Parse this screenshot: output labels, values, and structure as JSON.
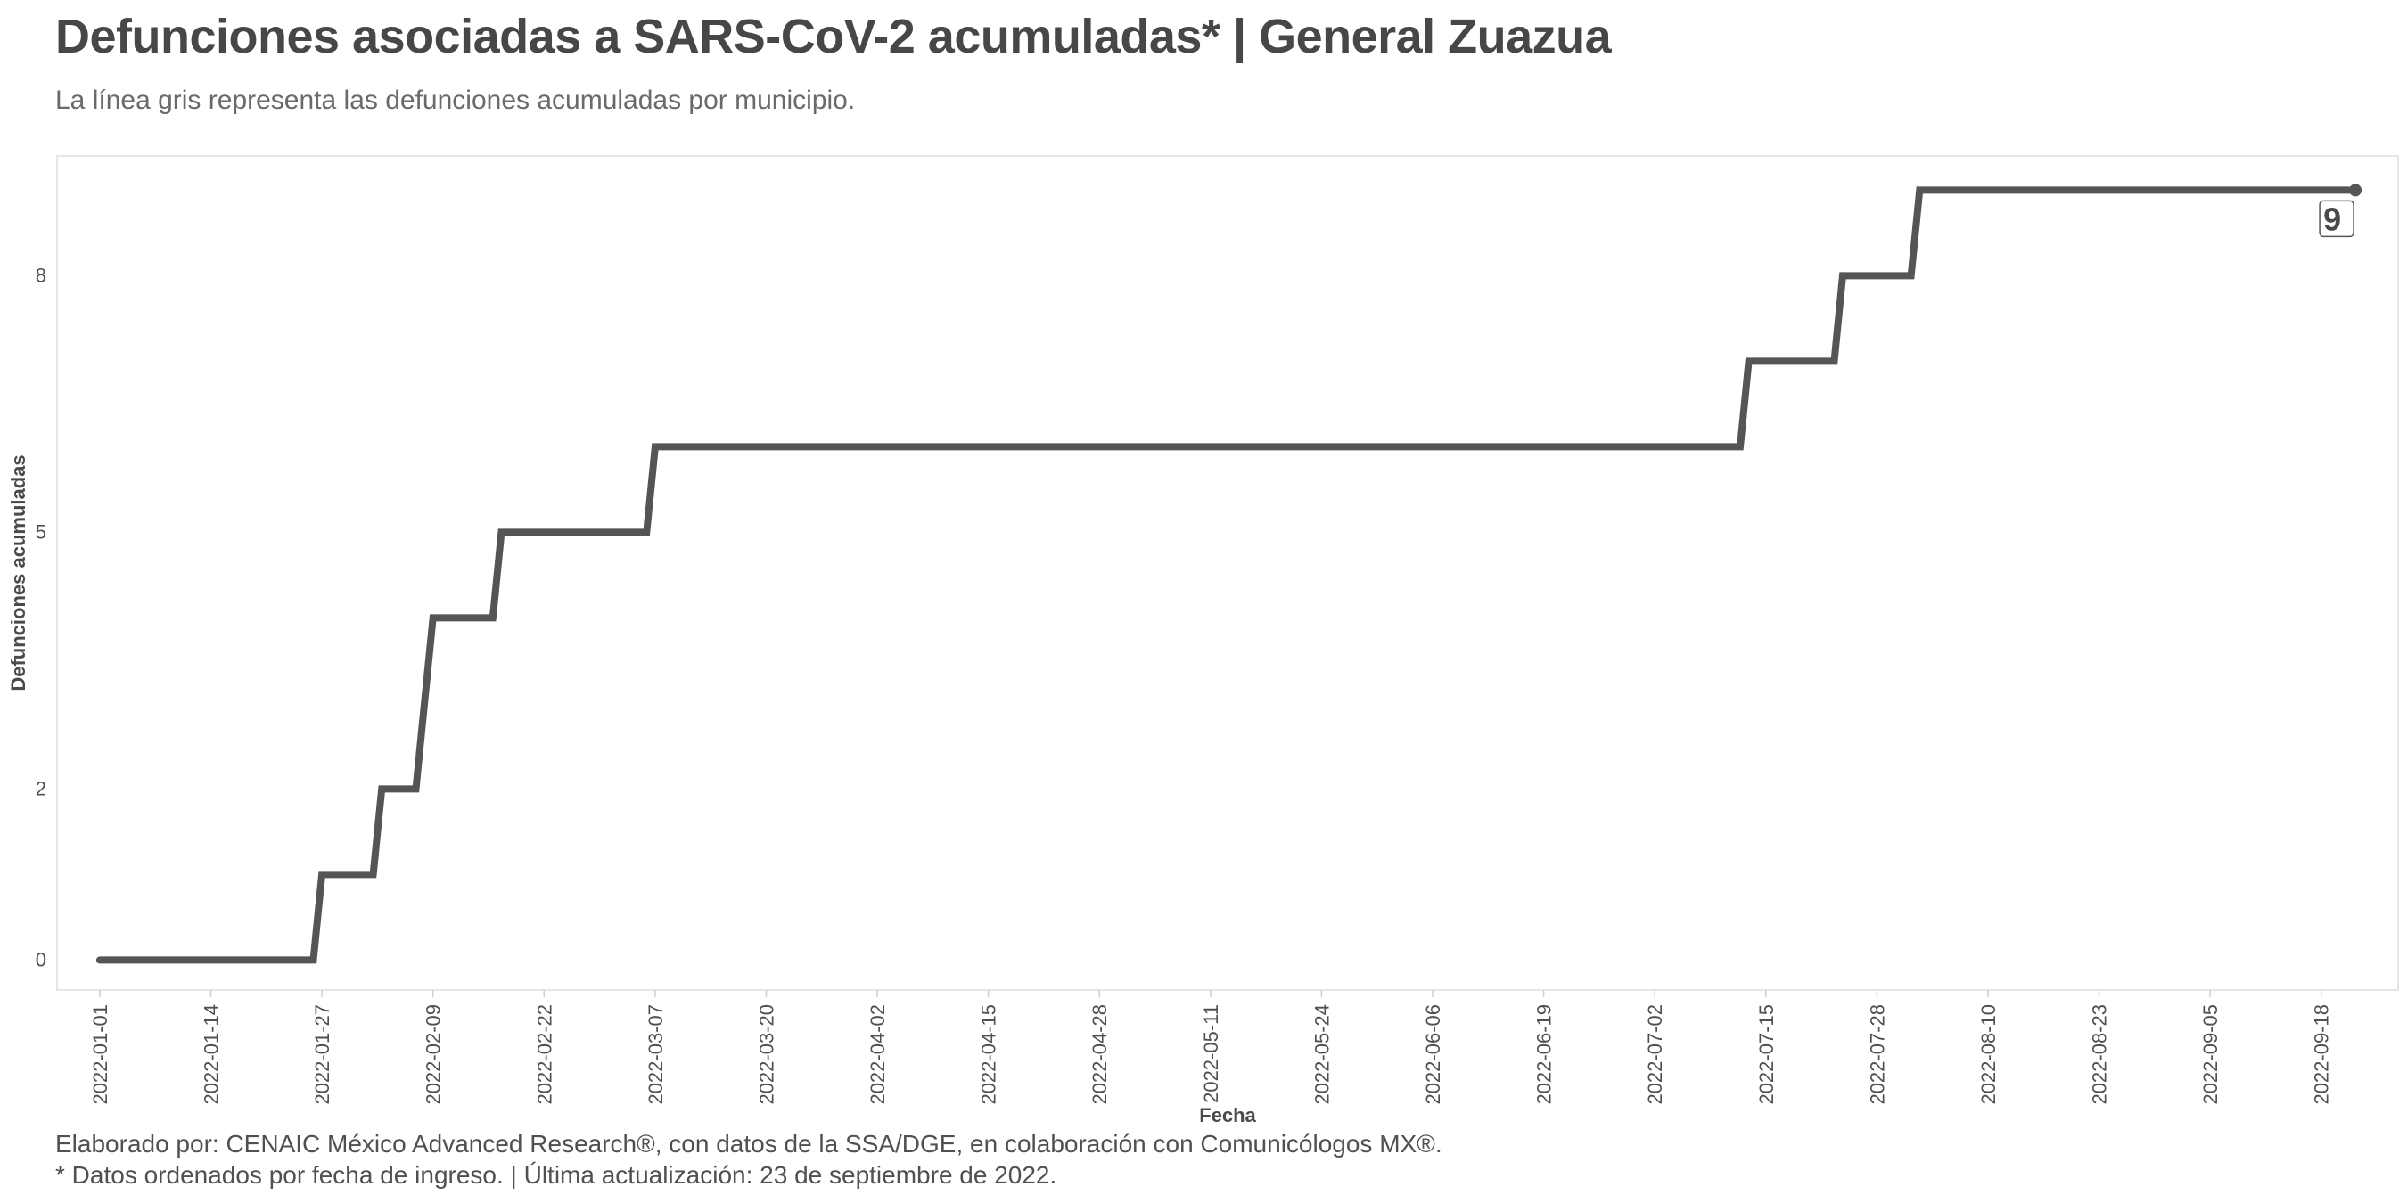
{
  "header": {
    "title": "Defunciones asociadas a SARS-CoV-2 acumuladas* | General Zuazua",
    "subtitle": "La línea gris representa las defunciones acumuladas por municipio."
  },
  "footer": {
    "caption_1": "Elaborado por: CENAIC México Advanced Research®, con datos de la SSA/DGE, en colaboración con Comunicólogos MX®.",
    "caption_2": "* Datos ordenados por fecha de ingreso. | Última actualización: 23 de septiembre de 2022."
  },
  "colors": {
    "line": "#555555",
    "panel_border": "#e6e6e6",
    "label_border": "#555555"
  },
  "chart_data": {
    "type": "line",
    "step": true,
    "xlabel": "Fecha",
    "ylabel": "Defunciones acumuladas",
    "xlim": [
      "2021-12-27",
      "2022-09-27"
    ],
    "ylim": [
      -0.35,
      9.4
    ],
    "x_ticks": [
      "2022-01-01",
      "2022-01-14",
      "2022-01-27",
      "2022-02-09",
      "2022-02-22",
      "2022-03-07",
      "2022-03-20",
      "2022-04-02",
      "2022-04-15",
      "2022-04-28",
      "2022-05-11",
      "2022-05-24",
      "2022-06-06",
      "2022-06-19",
      "2022-07-02",
      "2022-07-15",
      "2022-07-28",
      "2022-08-10",
      "2022-08-23",
      "2022-09-05",
      "2022-09-18"
    ],
    "y_ticks": [
      0,
      2,
      5,
      8
    ],
    "series": [
      {
        "points": [
          {
            "x": "2022-01-01",
            "y": 0
          },
          {
            "x": "2022-01-26",
            "y": 0
          },
          {
            "x": "2022-01-27",
            "y": 1
          },
          {
            "x": "2022-02-02",
            "y": 1
          },
          {
            "x": "2022-02-03",
            "y": 2
          },
          {
            "x": "2022-02-07",
            "y": 2
          },
          {
            "x": "2022-02-08",
            "y": 3
          },
          {
            "x": "2022-02-09",
            "y": 4
          },
          {
            "x": "2022-02-16",
            "y": 4
          },
          {
            "x": "2022-02-17",
            "y": 5
          },
          {
            "x": "2022-03-06",
            "y": 5
          },
          {
            "x": "2022-03-07",
            "y": 6
          },
          {
            "x": "2022-07-12",
            "y": 6
          },
          {
            "x": "2022-07-13",
            "y": 7
          },
          {
            "x": "2022-07-23",
            "y": 7
          },
          {
            "x": "2022-07-24",
            "y": 8
          },
          {
            "x": "2022-08-01",
            "y": 8
          },
          {
            "x": "2022-08-02",
            "y": 9
          },
          {
            "x": "2022-09-22",
            "y": 9
          }
        ],
        "end_label": "9"
      }
    ],
    "grid": false,
    "legend": "none"
  }
}
